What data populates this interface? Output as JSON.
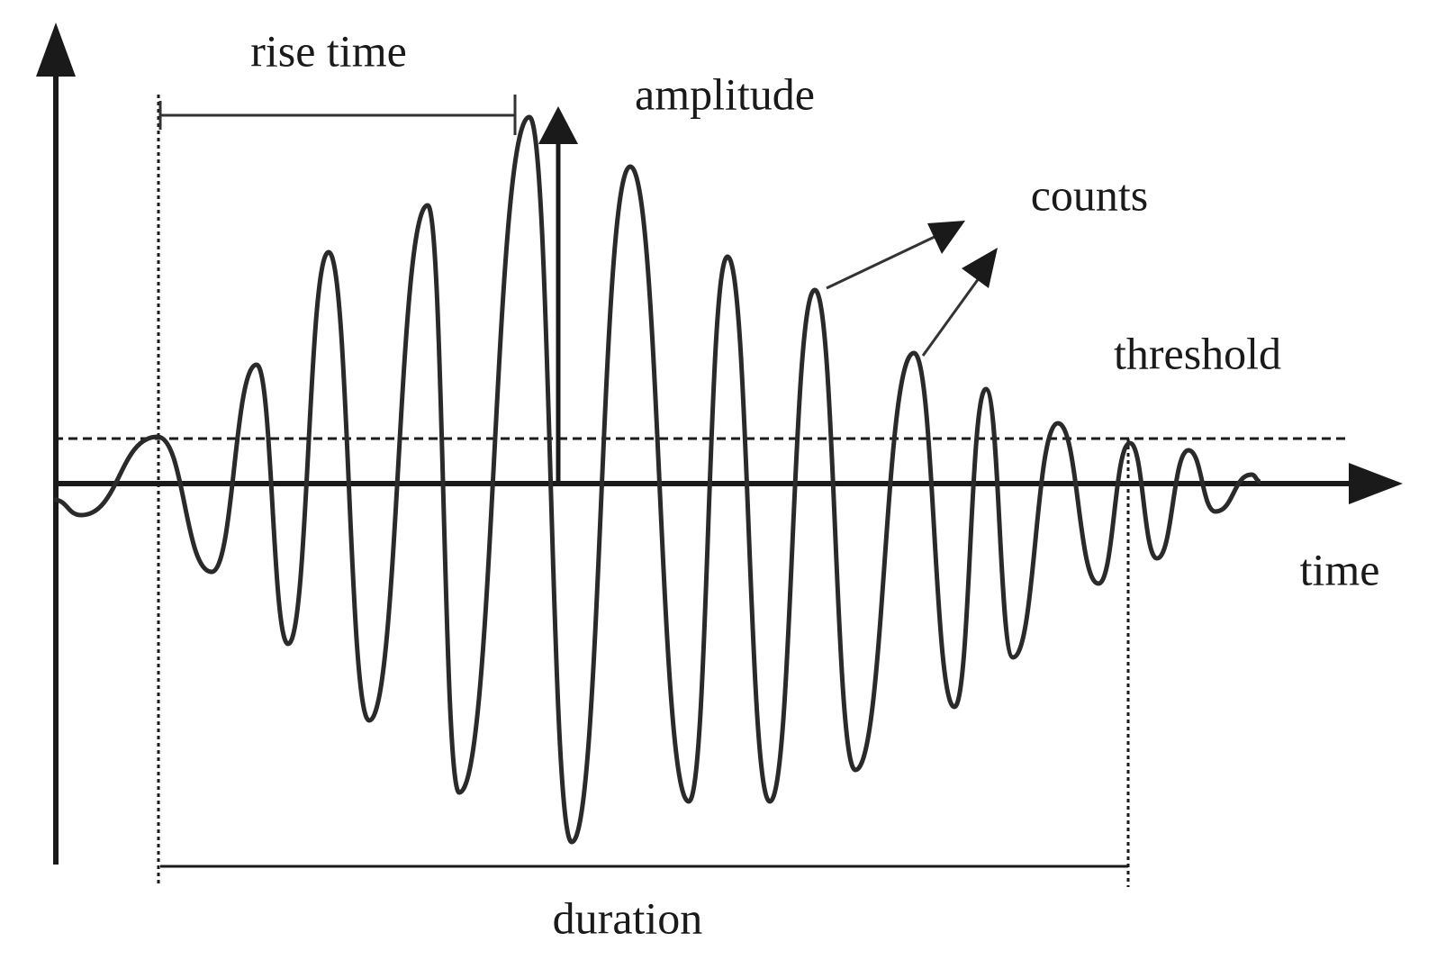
{
  "labels": {
    "rise_time": "rise time",
    "amplitude": "amplitude",
    "counts": "counts",
    "threshold": "threshold",
    "time": "time",
    "duration": "duration"
  }
}
